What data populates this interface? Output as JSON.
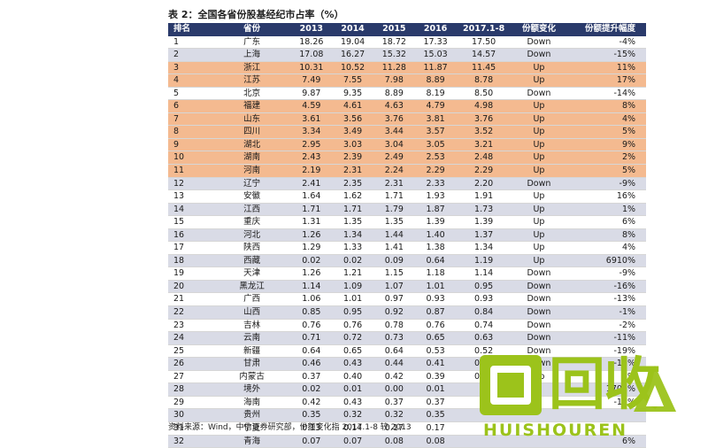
{
  "title": "表 2：全国各省份股基经纪市占率（%）",
  "columns": [
    "排名",
    "省份",
    "2013",
    "2014",
    "2015",
    "2016",
    "2017.1-8",
    "份额变化",
    "份额提升幅度"
  ],
  "rows": [
    {
      "rank": "1",
      "prov": "广东",
      "y2013": "18.26",
      "y2014": "19.04",
      "y2015": "18.72",
      "y2016": "17.33",
      "y2017": "17.50",
      "chg": "Down",
      "amp": "-4%",
      "hl": false
    },
    {
      "rank": "2",
      "prov": "上海",
      "y2013": "17.08",
      "y2014": "16.27",
      "y2015": "15.32",
      "y2016": "15.03",
      "y2017": "14.57",
      "chg": "Down",
      "amp": "-15%",
      "hl": false
    },
    {
      "rank": "3",
      "prov": "浙江",
      "y2013": "10.31",
      "y2014": "10.52",
      "y2015": "11.28",
      "y2016": "11.87",
      "y2017": "11.45",
      "chg": "Up",
      "amp": "11%",
      "hl": true
    },
    {
      "rank": "4",
      "prov": "江苏",
      "y2013": "7.49",
      "y2014": "7.55",
      "y2015": "7.98",
      "y2016": "8.89",
      "y2017": "8.78",
      "chg": "Up",
      "amp": "17%",
      "hl": true
    },
    {
      "rank": "5",
      "prov": "北京",
      "y2013": "9.87",
      "y2014": "9.35",
      "y2015": "8.89",
      "y2016": "8.19",
      "y2017": "8.50",
      "chg": "Down",
      "amp": "-14%",
      "hl": false
    },
    {
      "rank": "6",
      "prov": "福建",
      "y2013": "4.59",
      "y2014": "4.61",
      "y2015": "4.63",
      "y2016": "4.79",
      "y2017": "4.98",
      "chg": "Up",
      "amp": "8%",
      "hl": true
    },
    {
      "rank": "7",
      "prov": "山东",
      "y2013": "3.61",
      "y2014": "3.56",
      "y2015": "3.76",
      "y2016": "3.81",
      "y2017": "3.76",
      "chg": "Up",
      "amp": "4%",
      "hl": true
    },
    {
      "rank": "8",
      "prov": "四川",
      "y2013": "3.34",
      "y2014": "3.49",
      "y2015": "3.44",
      "y2016": "3.57",
      "y2017": "3.52",
      "chg": "Up",
      "amp": "5%",
      "hl": true
    },
    {
      "rank": "9",
      "prov": "湖北",
      "y2013": "2.95",
      "y2014": "3.03",
      "y2015": "3.04",
      "y2016": "3.05",
      "y2017": "3.21",
      "chg": "Up",
      "amp": "9%",
      "hl": true
    },
    {
      "rank": "10",
      "prov": "湖南",
      "y2013": "2.43",
      "y2014": "2.39",
      "y2015": "2.49",
      "y2016": "2.53",
      "y2017": "2.48",
      "chg": "Up",
      "amp": "2%",
      "hl": true
    },
    {
      "rank": "11",
      "prov": "河南",
      "y2013": "2.19",
      "y2014": "2.31",
      "y2015": "2.24",
      "y2016": "2.29",
      "y2017": "2.29",
      "chg": "Up",
      "amp": "5%",
      "hl": true
    },
    {
      "rank": "12",
      "prov": "辽宁",
      "y2013": "2.41",
      "y2014": "2.35",
      "y2015": "2.31",
      "y2016": "2.33",
      "y2017": "2.20",
      "chg": "Down",
      "amp": "-9%",
      "hl": false
    },
    {
      "rank": "13",
      "prov": "安徽",
      "y2013": "1.64",
      "y2014": "1.62",
      "y2015": "1.71",
      "y2016": "1.93",
      "y2017": "1.91",
      "chg": "Up",
      "amp": "16%",
      "hl": false
    },
    {
      "rank": "14",
      "prov": "江西",
      "y2013": "1.71",
      "y2014": "1.71",
      "y2015": "1.79",
      "y2016": "1.87",
      "y2017": "1.73",
      "chg": "Up",
      "amp": "1%",
      "hl": false
    },
    {
      "rank": "15",
      "prov": "重庆",
      "y2013": "1.31",
      "y2014": "1.35",
      "y2015": "1.35",
      "y2016": "1.39",
      "y2017": "1.39",
      "chg": "Up",
      "amp": "6%",
      "hl": false
    },
    {
      "rank": "16",
      "prov": "河北",
      "y2013": "1.26",
      "y2014": "1.34",
      "y2015": "1.44",
      "y2016": "1.40",
      "y2017": "1.37",
      "chg": "Up",
      "amp": "8%",
      "hl": false
    },
    {
      "rank": "17",
      "prov": "陕西",
      "y2013": "1.29",
      "y2014": "1.33",
      "y2015": "1.41",
      "y2016": "1.38",
      "y2017": "1.34",
      "chg": "Up",
      "amp": "4%",
      "hl": false
    },
    {
      "rank": "18",
      "prov": "西藏",
      "y2013": "0.02",
      "y2014": "0.02",
      "y2015": "0.09",
      "y2016": "0.64",
      "y2017": "1.19",
      "chg": "Up",
      "amp": "6910%",
      "hl": false
    },
    {
      "rank": "19",
      "prov": "天津",
      "y2013": "1.26",
      "y2014": "1.21",
      "y2015": "1.15",
      "y2016": "1.18",
      "y2017": "1.14",
      "chg": "Down",
      "amp": "-9%",
      "hl": false
    },
    {
      "rank": "20",
      "prov": "黑龙江",
      "y2013": "1.14",
      "y2014": "1.09",
      "y2015": "1.07",
      "y2016": "1.01",
      "y2017": "0.95",
      "chg": "Down",
      "amp": "-16%",
      "hl": false
    },
    {
      "rank": "21",
      "prov": "广西",
      "y2013": "1.06",
      "y2014": "1.01",
      "y2015": "0.97",
      "y2016": "0.93",
      "y2017": "0.93",
      "chg": "Down",
      "amp": "-13%",
      "hl": false
    },
    {
      "rank": "22",
      "prov": "山西",
      "y2013": "0.85",
      "y2014": "0.95",
      "y2015": "0.92",
      "y2016": "0.87",
      "y2017": "0.84",
      "chg": "Down",
      "amp": "-1%",
      "hl": false
    },
    {
      "rank": "23",
      "prov": "吉林",
      "y2013": "0.76",
      "y2014": "0.76",
      "y2015": "0.78",
      "y2016": "0.76",
      "y2017": "0.74",
      "chg": "Down",
      "amp": "-2%",
      "hl": false
    },
    {
      "rank": "24",
      "prov": "云南",
      "y2013": "0.71",
      "y2014": "0.72",
      "y2015": "0.73",
      "y2016": "0.65",
      "y2017": "0.63",
      "chg": "Down",
      "amp": "-11%",
      "hl": false
    },
    {
      "rank": "25",
      "prov": "新疆",
      "y2013": "0.64",
      "y2014": "0.65",
      "y2015": "0.64",
      "y2016": "0.53",
      "y2017": "0.52",
      "chg": "Down",
      "amp": "-19%",
      "hl": false
    },
    {
      "rank": "26",
      "prov": "甘肃",
      "y2013": "0.46",
      "y2014": "0.43",
      "y2015": "0.44",
      "y2016": "0.41",
      "y2017": "0.39",
      "chg": "Down",
      "amp": "-16%",
      "hl": false
    },
    {
      "rank": "27",
      "prov": "内蒙古",
      "y2013": "0.37",
      "y2014": "0.40",
      "y2015": "0.42",
      "y2016": "0.39",
      "y2017": "0.39",
      "chg": "Up",
      "amp": "4%",
      "hl": false
    },
    {
      "rank": "28",
      "prov": "境外",
      "y2013": "0.02",
      "y2014": "0.01",
      "y2015": "0.00",
      "y2016": "0.01",
      "y2017": "",
      "chg": "",
      "amp": "1708%",
      "hl": false
    },
    {
      "rank": "29",
      "prov": "海南",
      "y2013": "0.42",
      "y2014": "0.43",
      "y2015": "0.37",
      "y2016": "0.37",
      "y2017": "",
      "chg": "",
      "amp": "-15%",
      "hl": false
    },
    {
      "rank": "30",
      "prov": "贵州",
      "y2013": "0.35",
      "y2014": "0.32",
      "y2015": "0.32",
      "y2016": "0.35",
      "y2017": "",
      "chg": "",
      "amp": "",
      "hl": false
    },
    {
      "rank": "31",
      "prov": "宁夏",
      "y2013": "0.13",
      "y2014": "0.14",
      "y2015": "0.17",
      "y2016": "0.17",
      "y2017": "",
      "chg": "",
      "amp": "",
      "hl": false
    },
    {
      "rank": "32",
      "prov": "青海",
      "y2013": "0.07",
      "y2014": "0.07",
      "y2015": "0.08",
      "y2016": "0.08",
      "y2017": "",
      "chg": "",
      "amp": "6%",
      "hl": false
    }
  ],
  "source": "资料来源：Wind，中信证券研究部，份额变化指 2017.1-8 较 2013",
  "watermark": {
    "big_text": "回收",
    "sub_text": "HUISHOUREN",
    "color": "#9cc31b"
  },
  "colors": {
    "header_bg": "#2a3a6b",
    "row_stripe": "#d9dbe6",
    "highlight": "#f4ba90"
  }
}
